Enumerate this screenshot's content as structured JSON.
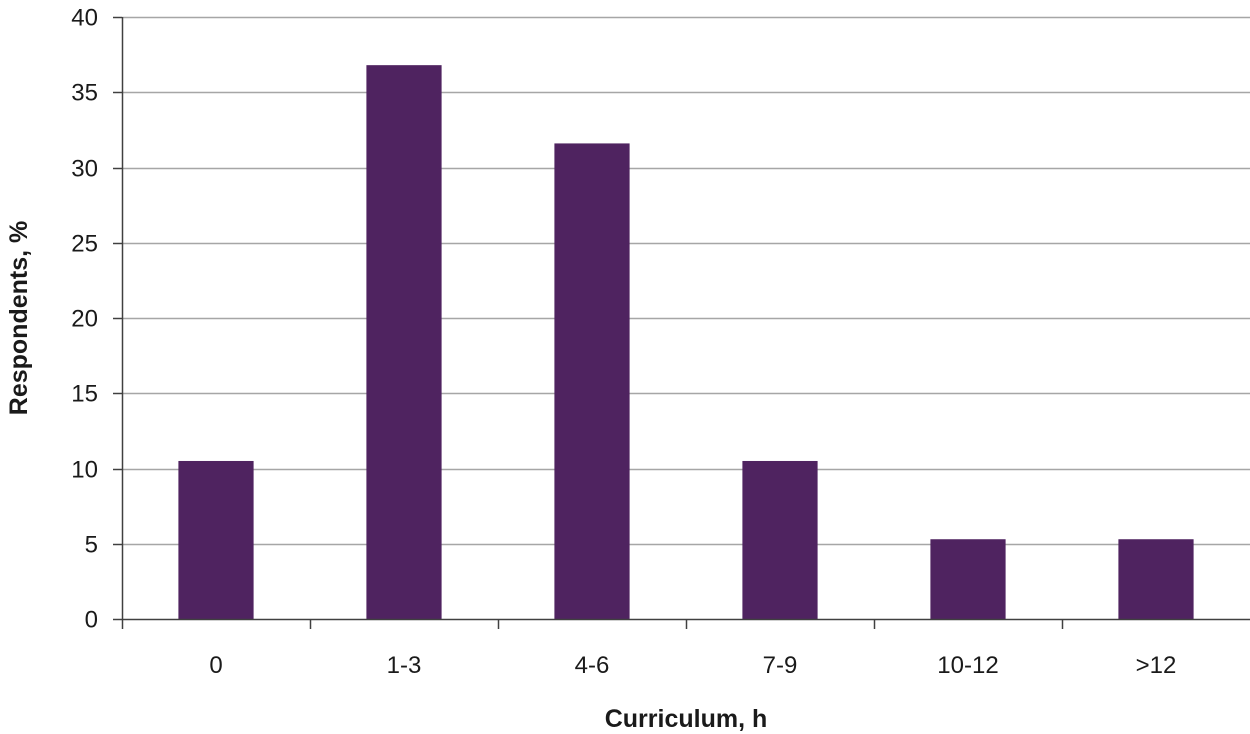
{
  "colors": {
    "bar": "#4f2360",
    "gridline": "#a6a6a6",
    "axis": "#404040"
  },
  "chart_data": {
    "type": "bar",
    "categories": [
      "0",
      "1-3",
      "4-6",
      "7-9",
      "10-12",
      ">12"
    ],
    "values": [
      10.5,
      36.8,
      31.6,
      10.5,
      5.3,
      5.3
    ],
    "xlabel": "Curriculum, h",
    "ylabel": "Respondents, %",
    "ylim": [
      0,
      40
    ],
    "yticks": [
      "0",
      "5",
      "10",
      "15",
      "20",
      "25",
      "30",
      "35",
      "40"
    ],
    "grid": true,
    "legend": "none"
  }
}
